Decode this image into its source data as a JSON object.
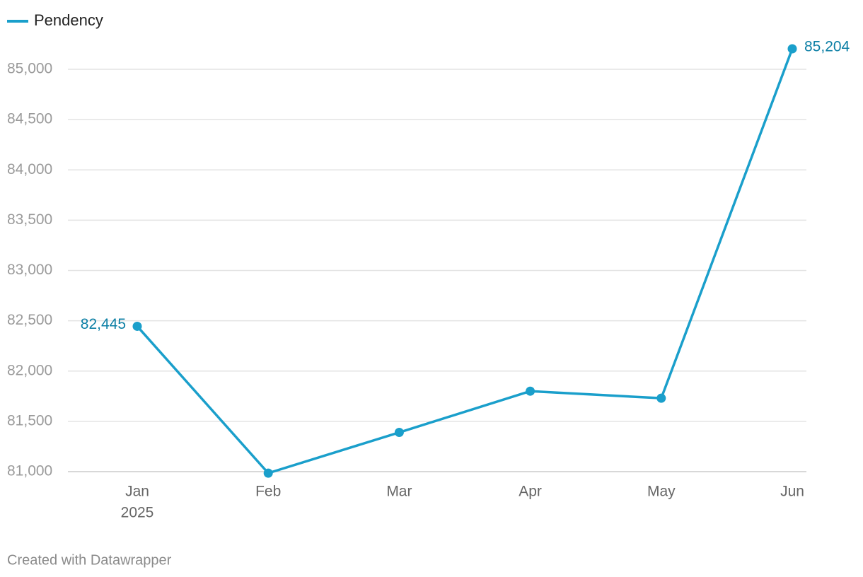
{
  "chart_data": {
    "type": "line",
    "categories": [
      "Jan",
      "Feb",
      "Mar",
      "Apr",
      "May",
      "Jun"
    ],
    "x_year_label": "2025",
    "series": [
      {
        "name": "Pendency",
        "color": "#1a9fcb",
        "values": [
          82445,
          80985,
          81390,
          81800,
          81730,
          85204
        ],
        "value_labels": [
          "82,445",
          null,
          null,
          null,
          null,
          "85,204"
        ]
      }
    ],
    "ylim": [
      81000,
      85000
    ],
    "yticks": [
      {
        "value": 81000,
        "label": "81,000"
      },
      {
        "value": 81500,
        "label": "81,500"
      },
      {
        "value": 82000,
        "label": "82,000"
      },
      {
        "value": 82500,
        "label": "82,500"
      },
      {
        "value": 83000,
        "label": "83,000"
      },
      {
        "value": 83500,
        "label": "83,500"
      },
      {
        "value": 84000,
        "label": "84,000"
      },
      {
        "value": 84500,
        "label": "84,500"
      },
      {
        "value": 85000,
        "label": "85,000"
      }
    ],
    "grid": true,
    "legend": "top-left",
    "footer": "Created with Datawrapper"
  }
}
